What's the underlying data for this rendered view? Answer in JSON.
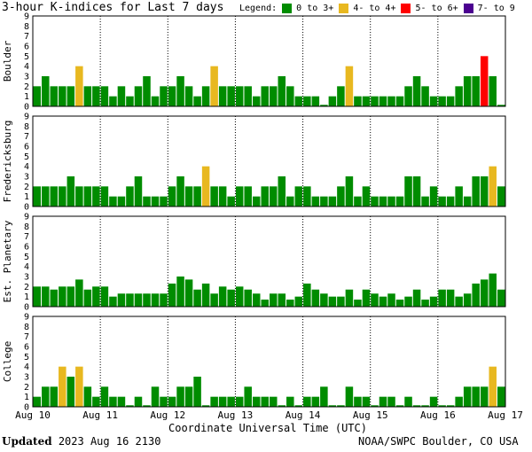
{
  "title": "3-hour K-indices for Last 7 days",
  "legend": {
    "label": "Legend:",
    "items": [
      {
        "label": "0 to 3+",
        "color": "#008c00"
      },
      {
        "label": "4- to 4+",
        "color": "#e8b820"
      },
      {
        "label": "5- to 6+",
        "color": "#ff0000"
      },
      {
        "label": "7- to 9",
        "color": "#4b0090"
      }
    ]
  },
  "footer": {
    "updated_label": "Updated",
    "updated_value": "2023 Aug 16 2130",
    "source": "NOAA/SWPC Boulder, CO USA"
  },
  "chart_data": {
    "type": "bar",
    "xlabel": "Coordinate Universal Time (UTC)",
    "x_ticks": [
      "Aug 10",
      "Aug 11",
      "Aug 12",
      "Aug 13",
      "Aug 14",
      "Aug 15",
      "Aug 16",
      "Aug 17"
    ],
    "ylim": [
      0,
      9
    ],
    "y_ticks": [
      0,
      1,
      2,
      3,
      4,
      5,
      6,
      7,
      8,
      9
    ],
    "bins_per_day": 8,
    "panels": [
      {
        "ylabel": "Boulder",
        "values": [
          2,
          3,
          2,
          2,
          2,
          4,
          2,
          2,
          2,
          1,
          2,
          1,
          2,
          3,
          1,
          2,
          2,
          3,
          2,
          1,
          2,
          4,
          2,
          2,
          2,
          2,
          1,
          2,
          2,
          3,
          2,
          1,
          1,
          1,
          0,
          1,
          2,
          4,
          1,
          1,
          1,
          1,
          1,
          1,
          2,
          3,
          2,
          1,
          1,
          1,
          2,
          3,
          3,
          5,
          3,
          0
        ]
      },
      {
        "ylabel": "Fredericksburg",
        "values": [
          2,
          2,
          2,
          2,
          3,
          2,
          2,
          2,
          2,
          1,
          1,
          2,
          3,
          1,
          1,
          1,
          2,
          3,
          2,
          2,
          4,
          2,
          2,
          1,
          2,
          2,
          1,
          2,
          2,
          3,
          1,
          2,
          2,
          1,
          1,
          1,
          2,
          3,
          1,
          2,
          1,
          1,
          1,
          1,
          3,
          3,
          1,
          2,
          1,
          1,
          2,
          1,
          3,
          3,
          4,
          2,
          0
        ]
      },
      {
        "ylabel": "Est. Planetary",
        "values": [
          2,
          2,
          1.7,
          2,
          2,
          2.7,
          1.7,
          2,
          2,
          1,
          1.3,
          1.3,
          1.3,
          1.3,
          1.3,
          1.3,
          2.3,
          3,
          2.7,
          1.7,
          2.3,
          1.3,
          2,
          1.7,
          2,
          1.7,
          1.3,
          0.7,
          1.3,
          1.3,
          0.7,
          1,
          2.3,
          1.7,
          1.3,
          1,
          1,
          1.7,
          0.7,
          1.7,
          1.3,
          1,
          1.3,
          0.7,
          1,
          1.7,
          0.7,
          1,
          1.7,
          1.7,
          1,
          1.3,
          2.3,
          2.7,
          3.3,
          1.7
        ]
      },
      {
        "ylabel": "College",
        "values": [
          1,
          2,
          2,
          4,
          3,
          4,
          2,
          1,
          2,
          1,
          1,
          0,
          1,
          0,
          2,
          1,
          1,
          2,
          2,
          3,
          0,
          1,
          1,
          1,
          1,
          2,
          1,
          1,
          1,
          0,
          1,
          0,
          1,
          1,
          2,
          0,
          0,
          2,
          1,
          1,
          0,
          1,
          1,
          0,
          1,
          0,
          0,
          1,
          0,
          0,
          1,
          2,
          2,
          2,
          4,
          2,
          0
        ]
      }
    ]
  }
}
